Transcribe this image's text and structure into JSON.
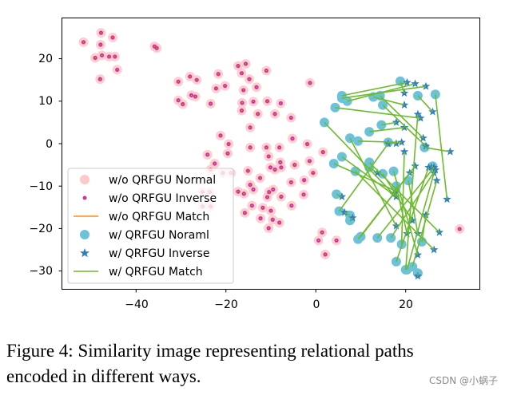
{
  "chart_data": {
    "type": "scatter",
    "title": "",
    "xlabel": "",
    "ylabel": "",
    "xlim": [
      -56.5,
      36.5
    ],
    "ylim": [
      -34.3,
      29.6
    ],
    "xticks": [
      -40,
      -20,
      0,
      20
    ],
    "yticks": [
      20,
      10,
      0,
      -10,
      -20,
      -30
    ],
    "xtick_labels": [
      "−40",
      "−20",
      "0",
      "20"
    ],
    "ytick_labels": [
      "20",
      "10",
      "0",
      "−10",
      "−20",
      "−30"
    ],
    "grid": false,
    "legend_position": "lower-left",
    "series": [
      {
        "name": "w/o QRFGU Normal",
        "marker": "circle",
        "color": "#ffc9c9",
        "points": [
          [
            -51.7,
            23.9
          ],
          [
            -47.8,
            26.1
          ],
          [
            -45.2,
            25
          ],
          [
            -47.9,
            23.3
          ],
          [
            -49.1,
            20.2
          ],
          [
            -47.6,
            20.8
          ],
          [
            -46,
            20.5
          ],
          [
            -44.7,
            20.5
          ],
          [
            -48,
            15.2
          ],
          [
            -44.2,
            17.4
          ],
          [
            -35.9,
            22.9
          ],
          [
            -35.4,
            22.5
          ],
          [
            -30.6,
            14.6
          ],
          [
            -28,
            15.8
          ],
          [
            -26.5,
            15
          ],
          [
            -21.7,
            16.4
          ],
          [
            -20.2,
            13.6
          ],
          [
            -22.2,
            13
          ],
          [
            -30.6,
            10.2
          ],
          [
            -29.6,
            9.3
          ],
          [
            -27.7,
            11.4
          ],
          [
            -26.8,
            11.1
          ],
          [
            -23.4,
            9.4
          ],
          [
            -17.3,
            18.3
          ],
          [
            -15.6,
            18.8
          ],
          [
            -11,
            17.2
          ],
          [
            -16.5,
            16.6
          ],
          [
            -14.8,
            15.2
          ],
          [
            -13.2,
            13.3
          ],
          [
            -16.1,
            12.6
          ],
          [
            -1.3,
            14.3
          ],
          [
            -16.4,
            9.6
          ],
          [
            -13.9,
            9.9
          ],
          [
            -10.8,
            10
          ],
          [
            -7.8,
            9.5
          ],
          [
            -16.5,
            7.8
          ],
          [
            -12.9,
            7
          ],
          [
            -9.1,
            7
          ],
          [
            -5.5,
            6.1
          ],
          [
            -14.6,
            3.8
          ],
          [
            -21.2,
            1.9
          ],
          [
            -19.4,
            -0.1
          ],
          [
            -19.6,
            -2.3
          ],
          [
            -24.1,
            -2.6
          ],
          [
            -22.5,
            -4.7
          ],
          [
            -14.6,
            -0.9
          ],
          [
            -11,
            -0.9
          ],
          [
            -8.1,
            -0.9
          ],
          [
            -5.2,
            1.2
          ],
          [
            -1.9,
            -0.1
          ],
          [
            1.6,
            -2
          ],
          [
            -10.5,
            -3
          ],
          [
            -4.7,
            -5
          ],
          [
            -1.4,
            -4.1
          ],
          [
            -0.6,
            -6.9
          ],
          [
            -7.9,
            -4.4
          ],
          [
            -7.7,
            -5.6
          ],
          [
            -10.1,
            -5.6
          ],
          [
            -9.1,
            -6.1
          ],
          [
            -15.1,
            -6.4
          ],
          [
            -12.4,
            -8.1
          ],
          [
            -23.4,
            -6.1
          ],
          [
            -20.7,
            -6.9
          ],
          [
            -18.9,
            -6.9
          ],
          [
            -5.5,
            -9.1
          ],
          [
            -2.6,
            -8.6
          ],
          [
            -14.6,
            -9.7
          ],
          [
            -13.9,
            -10.8
          ],
          [
            -10.4,
            -11.4
          ],
          [
            -9.5,
            -10.8
          ],
          [
            -10.8,
            -12.6
          ],
          [
            -7.7,
            -12.5
          ],
          [
            -2.7,
            -12
          ],
          [
            -17.3,
            -11.3
          ],
          [
            -16,
            -11.8
          ],
          [
            -25.2,
            -11.4
          ],
          [
            -23.6,
            -11.4
          ],
          [
            -25.2,
            -14.8
          ],
          [
            -23.4,
            -14.8
          ],
          [
            -14.2,
            -14.6
          ],
          [
            -11.8,
            -15.1
          ],
          [
            -10,
            -15.8
          ],
          [
            -5.4,
            -14.6
          ],
          [
            -15.8,
            -16.3
          ],
          [
            -12.3,
            -17.6
          ],
          [
            -9.6,
            -17.9
          ],
          [
            -8.1,
            -18.6
          ],
          [
            -10.5,
            -19.9
          ],
          [
            1.4,
            -20.9
          ],
          [
            0.6,
            -22.8
          ],
          [
            4.6,
            -22.8
          ],
          [
            2.1,
            -26.1
          ],
          [
            32,
            -20.1
          ]
        ]
      },
      {
        "name": "w/o QRFGU Inverse",
        "marker": "dot",
        "color": "#c8359f",
        "points": [
          [
            -51.7,
            23.9
          ],
          [
            -47.8,
            26.1
          ],
          [
            -45.2,
            25
          ],
          [
            -47.9,
            23.3
          ],
          [
            -49.1,
            20.2
          ],
          [
            -47.6,
            20.8
          ],
          [
            -46,
            20.5
          ],
          [
            -44.7,
            20.5
          ],
          [
            -48,
            15.2
          ],
          [
            -44.2,
            17.4
          ],
          [
            -35.9,
            22.9
          ],
          [
            -35.4,
            22.5
          ],
          [
            -30.6,
            14.6
          ],
          [
            -28,
            15.8
          ],
          [
            -26.5,
            15
          ],
          [
            -21.7,
            16.4
          ],
          [
            -20.2,
            13.6
          ],
          [
            -22.2,
            13
          ],
          [
            -30.6,
            10.2
          ],
          [
            -29.6,
            9.3
          ],
          [
            -27.7,
            11.4
          ],
          [
            -26.8,
            11.1
          ],
          [
            -23.4,
            9.4
          ],
          [
            -17.3,
            18.3
          ],
          [
            -15.6,
            18.8
          ],
          [
            -11,
            17.2
          ],
          [
            -16.5,
            16.6
          ],
          [
            -14.8,
            15.2
          ],
          [
            -13.2,
            13.3
          ],
          [
            -16.1,
            12.6
          ],
          [
            -1.3,
            14.3
          ],
          [
            -16.4,
            9.6
          ],
          [
            -13.9,
            9.9
          ],
          [
            -10.8,
            10
          ],
          [
            -7.8,
            9.5
          ],
          [
            -16.5,
            7.8
          ],
          [
            -12.9,
            7
          ],
          [
            -9.1,
            7
          ],
          [
            -5.5,
            6.1
          ],
          [
            -14.6,
            3.8
          ],
          [
            -21.2,
            1.9
          ],
          [
            -19.4,
            -0.1
          ],
          [
            -19.6,
            -2.3
          ],
          [
            -24.1,
            -2.6
          ],
          [
            -22.5,
            -4.7
          ],
          [
            -14.6,
            -0.9
          ],
          [
            -11,
            -0.9
          ],
          [
            -8.1,
            -0.9
          ],
          [
            -5.2,
            1.2
          ],
          [
            -1.9,
            -0.1
          ],
          [
            1.6,
            -2
          ],
          [
            -10.5,
            -3
          ],
          [
            -4.7,
            -5
          ],
          [
            -1.4,
            -4.1
          ],
          [
            -0.6,
            -6.9
          ],
          [
            -7.9,
            -4.4
          ],
          [
            -7.7,
            -5.6
          ],
          [
            -10.1,
            -5.6
          ],
          [
            -9.1,
            -6.1
          ],
          [
            -15.1,
            -6.4
          ],
          [
            -12.4,
            -8.1
          ],
          [
            -23.4,
            -6.1
          ],
          [
            -20.7,
            -6.9
          ],
          [
            -18.9,
            -6.9
          ],
          [
            -5.5,
            -9.1
          ],
          [
            -2.6,
            -8.6
          ],
          [
            -14.6,
            -9.7
          ],
          [
            -13.9,
            -10.8
          ],
          [
            -10.4,
            -11.4
          ],
          [
            -9.5,
            -10.8
          ],
          [
            -10.8,
            -12.6
          ],
          [
            -7.7,
            -12.5
          ],
          [
            -2.7,
            -12
          ],
          [
            -17.3,
            -11.3
          ],
          [
            -16,
            -11.8
          ],
          [
            -25.2,
            -11.4
          ],
          [
            -23.6,
            -11.4
          ],
          [
            -25.2,
            -14.8
          ],
          [
            -23.4,
            -14.8
          ],
          [
            -14.2,
            -14.6
          ],
          [
            -11.8,
            -15.1
          ],
          [
            -10,
            -15.8
          ],
          [
            -5.4,
            -14.6
          ],
          [
            -15.8,
            -16.3
          ],
          [
            -12.3,
            -17.6
          ],
          [
            -9.6,
            -17.9
          ],
          [
            -8.1,
            -18.6
          ],
          [
            -10.5,
            -19.9
          ],
          [
            1.4,
            -20.9
          ],
          [
            0.6,
            -22.8
          ],
          [
            4.6,
            -22.8
          ],
          [
            2.1,
            -26.1
          ],
          [
            32,
            -20.1
          ]
        ]
      },
      {
        "name": "w/o QRFGU Match",
        "marker": "line",
        "color": "#ff8c1a"
      },
      {
        "name": "w/ QRFGU Noraml",
        "marker": "circle",
        "color": "#6cc3d9",
        "points": [
          [
            5.8,
            11.3
          ],
          [
            7.0,
            10.0
          ],
          [
            5.8,
            10.7
          ],
          [
            4.3,
            8.5
          ],
          [
            1.9,
            5.0
          ],
          [
            12.8,
            11.0
          ],
          [
            14.9,
            9.1
          ],
          [
            14.3,
            11.3
          ],
          [
            26.6,
            11.6
          ],
          [
            24.2,
            -0.9
          ],
          [
            22.7,
            11.3
          ],
          [
            9.4,
            0.6
          ],
          [
            11.9,
            2.8
          ],
          [
            5.8,
            -3.1
          ],
          [
            4.0,
            -4.7
          ],
          [
            5.2,
            -15.9
          ],
          [
            9.4,
            -22.5
          ],
          [
            10.0,
            -21.9
          ],
          [
            13.7,
            -22.2
          ],
          [
            16.7,
            -22.2
          ],
          [
            20.3,
            -29.7
          ],
          [
            17.9,
            -27.8
          ],
          [
            20.0,
            -29.7
          ],
          [
            21.5,
            -29.0
          ],
          [
            8.8,
            -6.5
          ],
          [
            11.9,
            -4.4
          ],
          [
            14.9,
            -7.1
          ],
          [
            17.3,
            -6.5
          ],
          [
            7.6,
            1.3
          ],
          [
            19.1,
            -23.7
          ],
          [
            20.6,
            -8.7
          ],
          [
            17.9,
            -10.0
          ],
          [
            23.6,
            -23.1
          ],
          [
            18.8,
            14.7
          ],
          [
            14.6,
            4.4
          ],
          [
            4.6,
            -11.9
          ],
          [
            7.6,
            -16.9
          ],
          [
            22.7,
            -30.5
          ],
          [
            26.0,
            -5.3
          ],
          [
            16.1,
            0.3
          ],
          [
            7.6,
            -18.1
          ],
          [
            11.9,
            -5.6
          ]
        ]
      },
      {
        "name": "w/ QRFGU Inverse",
        "marker": "star",
        "color": "#2f7dc2",
        "points": [
          [
            20.3,
            14.4
          ],
          [
            22.1,
            14.1
          ],
          [
            24.5,
            13.5
          ],
          [
            23.3,
            6.0
          ],
          [
            17.3,
            -11.9
          ],
          [
            19.7,
            9.1
          ],
          [
            24.5,
            -0.6
          ],
          [
            23.9,
            1.3
          ],
          [
            29.2,
            -13.1
          ],
          [
            29.9,
            -1.9
          ],
          [
            26.0,
            7.5
          ],
          [
            19.1,
            0.3
          ],
          [
            19.7,
            3.8
          ],
          [
            17.9,
            -12.5
          ],
          [
            17.9,
            -11.2
          ],
          [
            16.1,
            0.0
          ],
          [
            22.1,
            -5.3
          ],
          [
            20.9,
            -6.9
          ],
          [
            26.3,
            -5.6
          ],
          [
            26.6,
            -6.2
          ],
          [
            26.3,
            -6.9
          ],
          [
            25.1,
            -5.6
          ],
          [
            22.7,
            6.9
          ],
          [
            26.9,
            -8.7
          ],
          [
            26.3,
            -25.0
          ],
          [
            27.5,
            -20.9
          ],
          [
            21.5,
            -18.1
          ],
          [
            22.7,
            -26.2
          ],
          [
            17.9,
            -19.4
          ],
          [
            19.7,
            -1.9
          ],
          [
            22.7,
            -21.2
          ],
          [
            20.3,
            -21.2
          ],
          [
            24.5,
            -16.8
          ],
          [
            19.7,
            11.9
          ],
          [
            17.9,
            5.0
          ],
          [
            5.8,
            -12.5
          ],
          [
            6.4,
            -16.2
          ],
          [
            22.7,
            -31.2
          ],
          [
            25.7,
            -5.6
          ],
          [
            17.9,
            0.0
          ],
          [
            8.2,
            -17.5
          ],
          [
            13.7,
            -6.9
          ]
        ]
      },
      {
        "name": "w/ QRFGU Match",
        "marker": "line",
        "color": "#6cbb2c"
      }
    ]
  },
  "caption": {
    "line1": "Figure 4: Similarity image representing relational paths",
    "line2": "encoded in different ways."
  },
  "watermark": "CSDN @小蜗子"
}
